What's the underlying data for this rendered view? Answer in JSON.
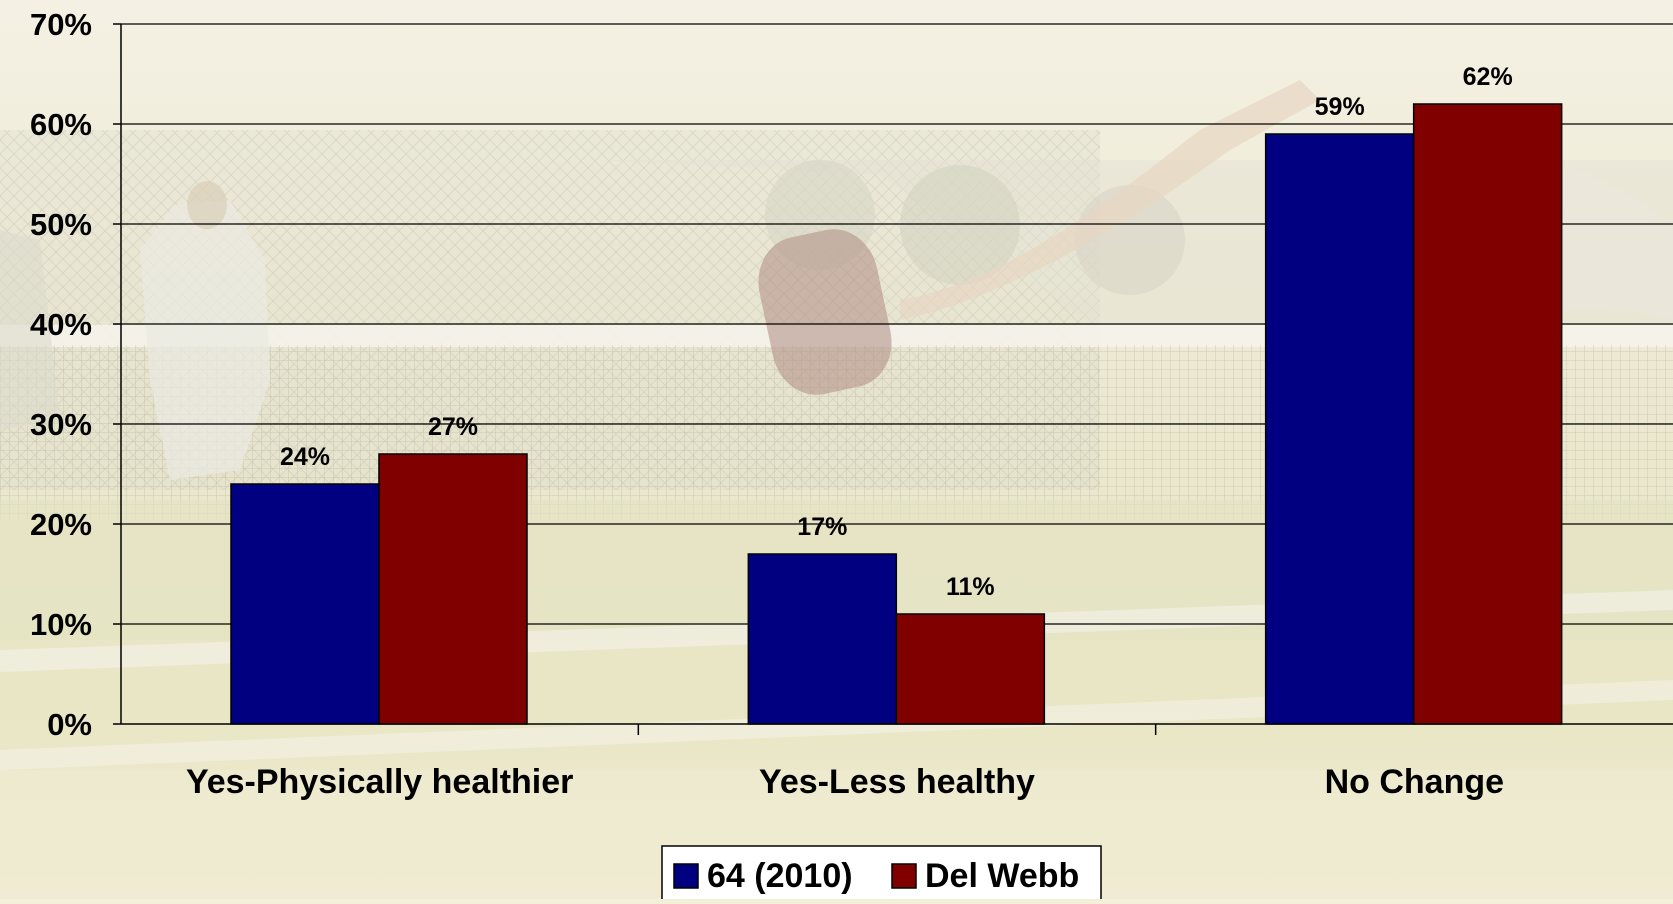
{
  "chart_data": {
    "type": "bar",
    "categories": [
      "Yes-Physically healthier",
      "Yes-Less healthy",
      "No Change"
    ],
    "series": [
      {
        "name": "64 (2010)",
        "values": [
          24,
          17,
          59
        ],
        "color": "#000080"
      },
      {
        "name": "Del Webb",
        "values": [
          27,
          11,
          62
        ],
        "color": "#800000"
      }
    ],
    "data_labels": [
      [
        "24%",
        "17%",
        "59%"
      ],
      [
        "27%",
        "11%",
        "62%"
      ]
    ],
    "y_ticks": [
      0,
      10,
      20,
      30,
      40,
      50,
      60,
      70
    ],
    "y_tick_labels": [
      "0%",
      "10%",
      "20%",
      "30%",
      "40%",
      "50%",
      "60%",
      "70%"
    ],
    "ylim": [
      0,
      70
    ],
    "grid": true,
    "legend": "bottom-center",
    "background": "faded photo of a pickleball court"
  }
}
